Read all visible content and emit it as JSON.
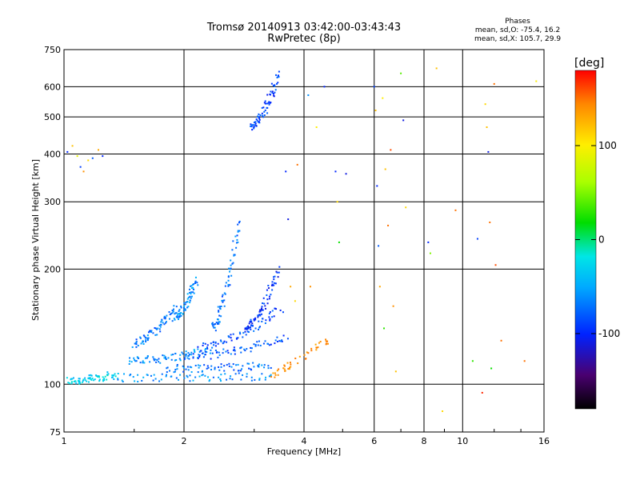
{
  "chart_data": {
    "type": "scatter",
    "title": "Tromsø 20140913 03:42:00-03:43:43",
    "subtitle": "RwPretec (8p)",
    "xlabel": "Frequency [MHz]",
    "ylabel": "Stationary phase Virtual Height [km]",
    "x_scale": "log",
    "y_scale": "log",
    "xlim": [
      1,
      16
    ],
    "ylim": [
      75,
      750
    ],
    "x_ticks": [
      "1",
      "2",
      "4",
      "6",
      "8",
      "10",
      "16"
    ],
    "y_ticks": [
      "75",
      "100",
      "200",
      "300",
      "400",
      "500",
      "600",
      "750"
    ],
    "grid": true,
    "colorbar": {
      "label": "[deg]",
      "range": [
        -180,
        180
      ],
      "ticks": [
        "100",
        "0",
        "-100"
      ]
    },
    "phase_stats": {
      "title": "Phases",
      "line1": "mean, sd,O: -75.4, 16.2",
      "line2": "mean, sd,X: 105.7, 29.9"
    },
    "series": [
      {
        "traces": [
          {
            "x0": 1.02,
            "x1": 1.35,
            "y0": 102,
            "y1": 106,
            "phase": -30
          },
          {
            "x0": 1.35,
            "x1": 3.35,
            "y0": 104,
            "y1": 105,
            "phase": -60
          },
          {
            "x0": 1.45,
            "x1": 2.3,
            "y0": 115,
            "y1": 122,
            "phase": -60
          },
          {
            "x0": 1.8,
            "x1": 3.3,
            "y0": 110,
            "y1": 112,
            "phase": -70
          },
          {
            "x0": 2.0,
            "x1": 3.6,
            "y0": 118,
            "y1": 132,
            "phase": -80
          },
          {
            "x0": 2.2,
            "x1": 3.5,
            "y0": 125,
            "y1": 158,
            "phase": -85
          },
          {
            "x0": 1.5,
            "x1": 1.9,
            "y0": 128,
            "y1": 158,
            "phase": -70
          },
          {
            "x0": 1.9,
            "x1": 2.15,
            "y0": 150,
            "y1": 188,
            "phase": -60
          },
          {
            "x0": 2.35,
            "x1": 2.75,
            "y0": 140,
            "y1": 270,
            "phase": -70
          },
          {
            "x0": 2.85,
            "x1": 3.45,
            "y0": 140,
            "y1": 200,
            "phase": -95
          },
          {
            "x0": 2.95,
            "x1": 3.45,
            "y0": 470,
            "y1": 650,
            "phase": -90
          }
        ],
        "x_band": [
          3.3,
          4.6
        ],
        "x_band_y": [
          103,
          130
        ],
        "x_band_phase": 140,
        "scattered": [
          {
            "x": 1.02,
            "y": 405,
            "phase": -100
          },
          {
            "x": 1.05,
            "y": 420,
            "phase": 120
          },
          {
            "x": 1.08,
            "y": 395,
            "phase": 90
          },
          {
            "x": 1.1,
            "y": 370,
            "phase": -90
          },
          {
            "x": 1.12,
            "y": 360,
            "phase": 140
          },
          {
            "x": 1.15,
            "y": 385,
            "phase": 110
          },
          {
            "x": 1.18,
            "y": 390,
            "phase": -80
          },
          {
            "x": 1.22,
            "y": 410,
            "phase": 130
          },
          {
            "x": 1.25,
            "y": 395,
            "phase": -100
          },
          {
            "x": 3.6,
            "y": 360,
            "phase": -100
          },
          {
            "x": 3.65,
            "y": 270,
            "phase": -110
          },
          {
            "x": 3.7,
            "y": 180,
            "phase": 130
          },
          {
            "x": 3.8,
            "y": 165,
            "phase": 110
          },
          {
            "x": 3.85,
            "y": 375,
            "phase": 150
          },
          {
            "x": 4.1,
            "y": 570,
            "phase": -60
          },
          {
            "x": 4.15,
            "y": 180,
            "phase": 140
          },
          {
            "x": 4.3,
            "y": 470,
            "phase": 100
          },
          {
            "x": 4.5,
            "y": 600,
            "phase": -100
          },
          {
            "x": 4.8,
            "y": 360,
            "phase": -100
          },
          {
            "x": 4.85,
            "y": 300,
            "phase": 110
          },
          {
            "x": 4.9,
            "y": 235,
            "phase": 20
          },
          {
            "x": 5.1,
            "y": 355,
            "phase": -110
          },
          {
            "x": 6.0,
            "y": 600,
            "phase": -90
          },
          {
            "x": 6.05,
            "y": 520,
            "phase": 120
          },
          {
            "x": 6.1,
            "y": 330,
            "phase": -100
          },
          {
            "x": 6.15,
            "y": 230,
            "phase": -80
          },
          {
            "x": 6.2,
            "y": 180,
            "phase": 130
          },
          {
            "x": 6.3,
            "y": 560,
            "phase": 100
          },
          {
            "x": 6.35,
            "y": 140,
            "phase": 30
          },
          {
            "x": 6.4,
            "y": 365,
            "phase": 120
          },
          {
            "x": 6.5,
            "y": 260,
            "phase": 150
          },
          {
            "x": 6.6,
            "y": 410,
            "phase": 160
          },
          {
            "x": 6.7,
            "y": 160,
            "phase": 140
          },
          {
            "x": 6.8,
            "y": 108,
            "phase": 120
          },
          {
            "x": 7.0,
            "y": 650,
            "phase": 40
          },
          {
            "x": 7.1,
            "y": 490,
            "phase": -110
          },
          {
            "x": 7.2,
            "y": 290,
            "phase": 110
          },
          {
            "x": 8.2,
            "y": 235,
            "phase": -100
          },
          {
            "x": 8.3,
            "y": 220,
            "phase": 50
          },
          {
            "x": 8.6,
            "y": 670,
            "phase": 120
          },
          {
            "x": 8.9,
            "y": 85,
            "phase": 110
          },
          {
            "x": 9.6,
            "y": 285,
            "phase": 150
          },
          {
            "x": 10.6,
            "y": 115,
            "phase": 30
          },
          {
            "x": 10.9,
            "y": 240,
            "phase": -90
          },
          {
            "x": 11.2,
            "y": 95,
            "phase": 170
          },
          {
            "x": 11.4,
            "y": 540,
            "phase": 110
          },
          {
            "x": 11.5,
            "y": 470,
            "phase": 120
          },
          {
            "x": 11.6,
            "y": 405,
            "phase": -110
          },
          {
            "x": 11.7,
            "y": 265,
            "phase": 150
          },
          {
            "x": 11.8,
            "y": 110,
            "phase": 20
          },
          {
            "x": 12.0,
            "y": 610,
            "phase": 150
          },
          {
            "x": 12.1,
            "y": 205,
            "phase": 160
          },
          {
            "x": 12.5,
            "y": 130,
            "phase": 150
          },
          {
            "x": 14.3,
            "y": 115,
            "phase": 150
          },
          {
            "x": 15.3,
            "y": 620,
            "phase": 100
          }
        ]
      }
    ]
  }
}
